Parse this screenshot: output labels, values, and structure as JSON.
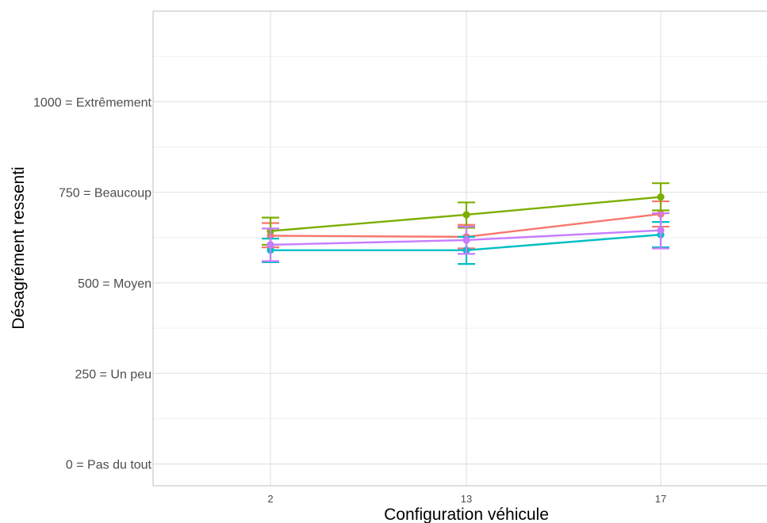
{
  "chart_data": {
    "type": "line",
    "xlabel": "Configuration véhicule",
    "ylabel": "Désagrément ressenti",
    "categories": [
      "2",
      "13",
      "17"
    ],
    "ylim": [
      -60,
      1250
    ],
    "grid": true,
    "y_ticks": [
      {
        "value": 0,
        "label": "0 = Pas du tout"
      },
      {
        "value": 250,
        "label": "250 = Un peu"
      },
      {
        "value": 500,
        "label": "500 = Moyen"
      },
      {
        "value": 750,
        "label": "750 = Beaucoup"
      },
      {
        "value": 1000,
        "label": "1000 = Extrêmement"
      }
    ],
    "y_minor_ticks": [
      125,
      375,
      625,
      875,
      1125
    ],
    "series": [
      {
        "color": "#F8766D",
        "values": [
          630,
          627,
          690
        ],
        "error_low": [
          598,
          595,
          655
        ],
        "error_high": [
          665,
          660,
          725
        ]
      },
      {
        "color": "#7CAE00",
        "values": [
          643,
          688,
          737
        ],
        "error_low": [
          605,
          652,
          700
        ],
        "error_high": [
          680,
          722,
          775
        ]
      },
      {
        "color": "#00BFC4",
        "values": [
          590,
          590,
          633
        ],
        "error_low": [
          557,
          552,
          598
        ],
        "error_high": [
          622,
          627,
          668
        ]
      },
      {
        "color": "#C77CFF",
        "values": [
          605,
          618,
          645
        ],
        "error_low": [
          560,
          580,
          595
        ],
        "error_high": [
          650,
          655,
          692
        ]
      }
    ]
  }
}
